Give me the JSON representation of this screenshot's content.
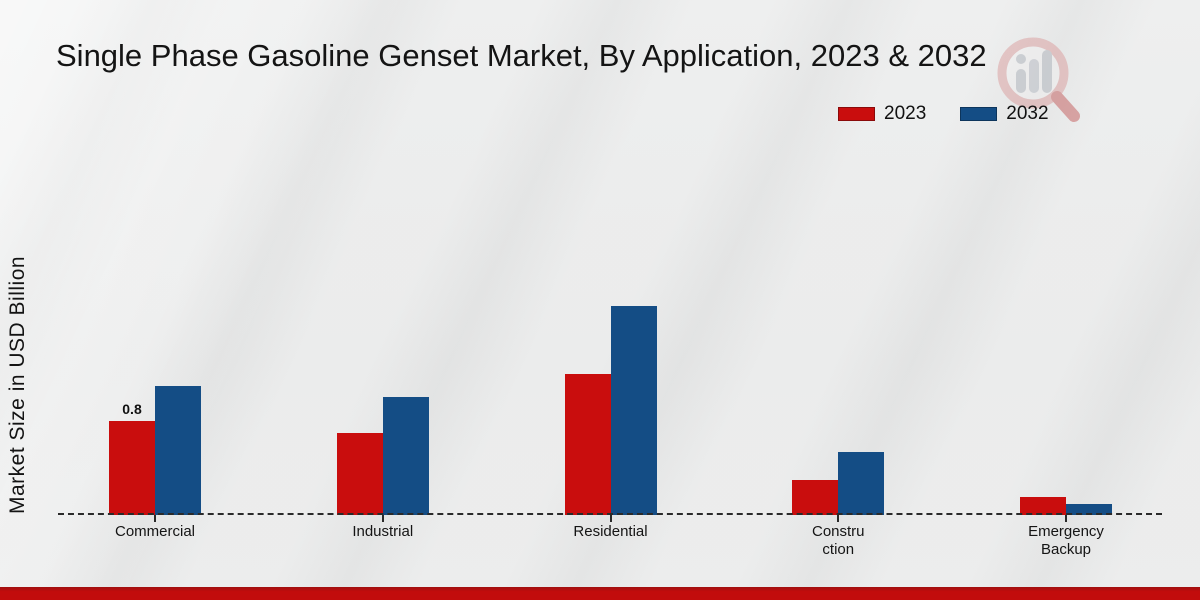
{
  "header": {
    "title": "Single Phase Gasoline Genset Market, By Application, 2023 & 2032"
  },
  "watermark": {
    "name": "market-research-future-logo"
  },
  "footer": {
    "bar_color": "#c20c0c"
  },
  "chart_data": {
    "type": "bar",
    "title": "Single Phase Gasoline Genset Market, By Application, 2023 & 2032",
    "categories": [
      "Commercial",
      "Industrial",
      "Residential",
      "Construction",
      "Emergency Backup"
    ],
    "category_label_lines": [
      [
        "Commercial"
      ],
      [
        "Industrial"
      ],
      [
        "Residential"
      ],
      [
        "Constru",
        "ction"
      ],
      [
        "Emergency",
        "Backup"
      ]
    ],
    "series": [
      {
        "name": "2023",
        "color": "#c90d0d",
        "edge_color": "#8a0a0a",
        "values": [
          0.8,
          0.7,
          1.2,
          0.3,
          0.15
        ]
      },
      {
        "name": "2032",
        "color": "#144d85",
        "edge_color": "#0d355c",
        "values": [
          1.1,
          1.0,
          1.78,
          0.54,
          0.09
        ]
      }
    ],
    "xlabel": "",
    "ylabel": "Market Size in USD Billion",
    "ylim": [
      0,
      2.2
    ],
    "grid": false,
    "legend_position": "top-right",
    "baseline_style": "dashed",
    "data_labels": [
      {
        "category": "Commercial",
        "series": "2023",
        "text": "0.8"
      }
    ]
  }
}
